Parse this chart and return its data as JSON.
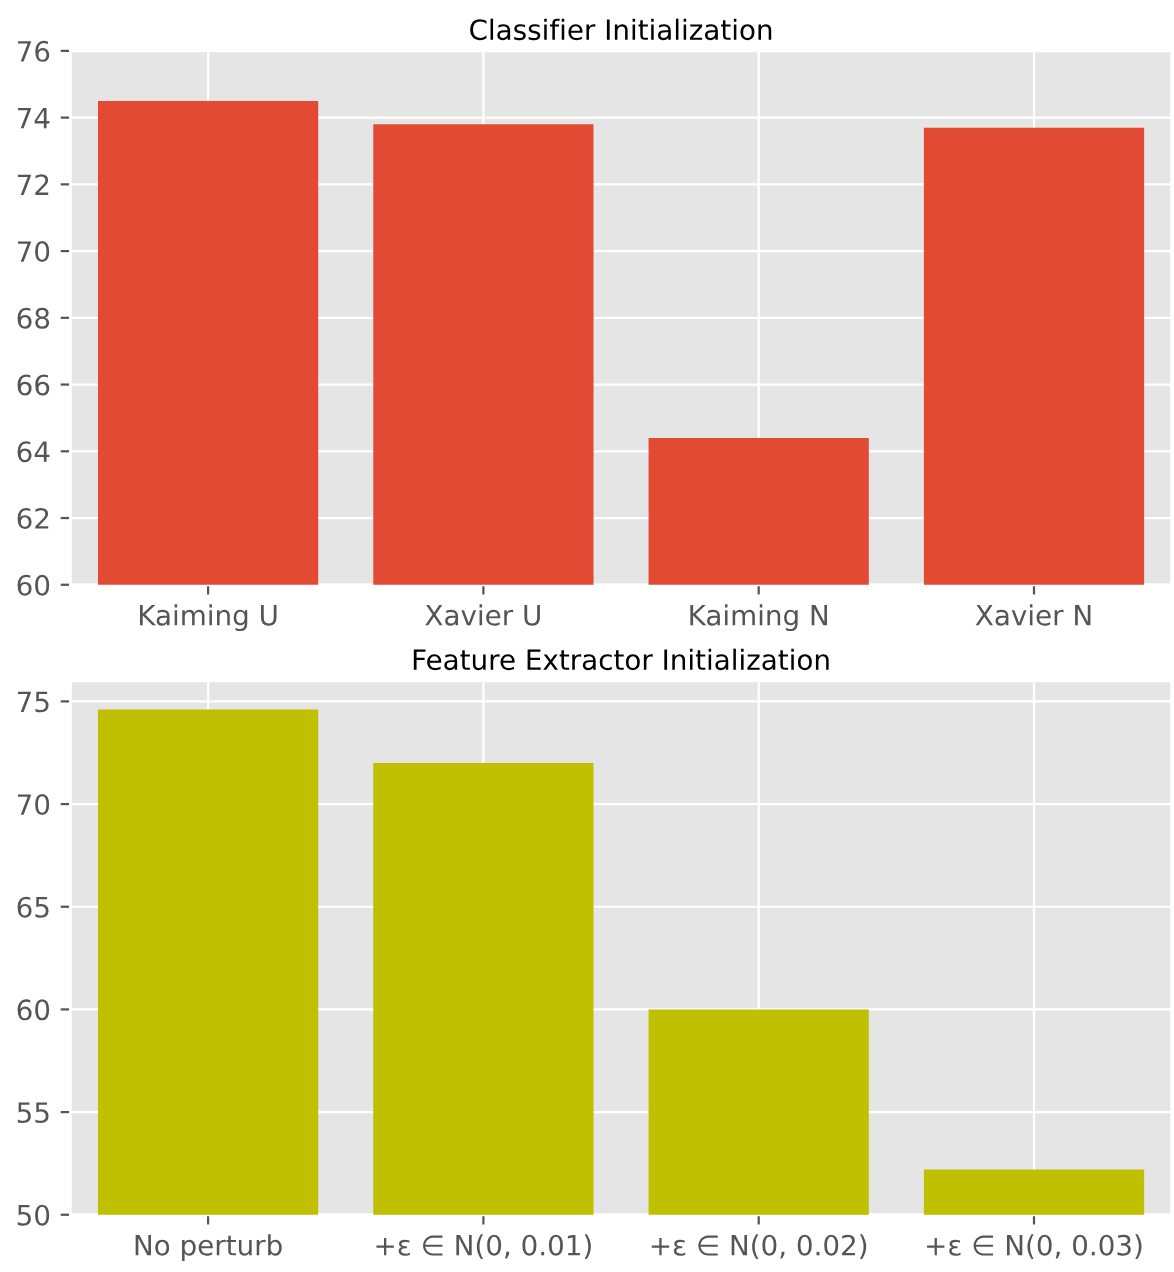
{
  "chart_data": [
    {
      "type": "bar",
      "title": "Classifier Initialization",
      "categories": [
        "Kaiming U",
        "Xavier U",
        "Kaiming N",
        "Xavier N"
      ],
      "values": [
        74.5,
        73.8,
        64.4,
        73.7
      ],
      "color": "#e24a33",
      "ylim": [
        60,
        76
      ],
      "yticks": [
        60,
        62,
        64,
        66,
        68,
        70,
        72,
        74,
        76
      ],
      "grid": true
    },
    {
      "type": "bar",
      "title": "Feature Extractor Initialization",
      "categories": [
        "No perturb",
        "+ε ∈ N(0, 0.01)",
        "+ε ∈ N(0, 0.02)",
        "+ε ∈ N(0, 0.03)"
      ],
      "values": [
        74.6,
        72.0,
        60.0,
        52.2
      ],
      "color": "#c0bf00",
      "ylim": [
        50,
        76
      ],
      "yticks": [
        50,
        55,
        60,
        65,
        70,
        75
      ],
      "grid": true
    }
  ]
}
